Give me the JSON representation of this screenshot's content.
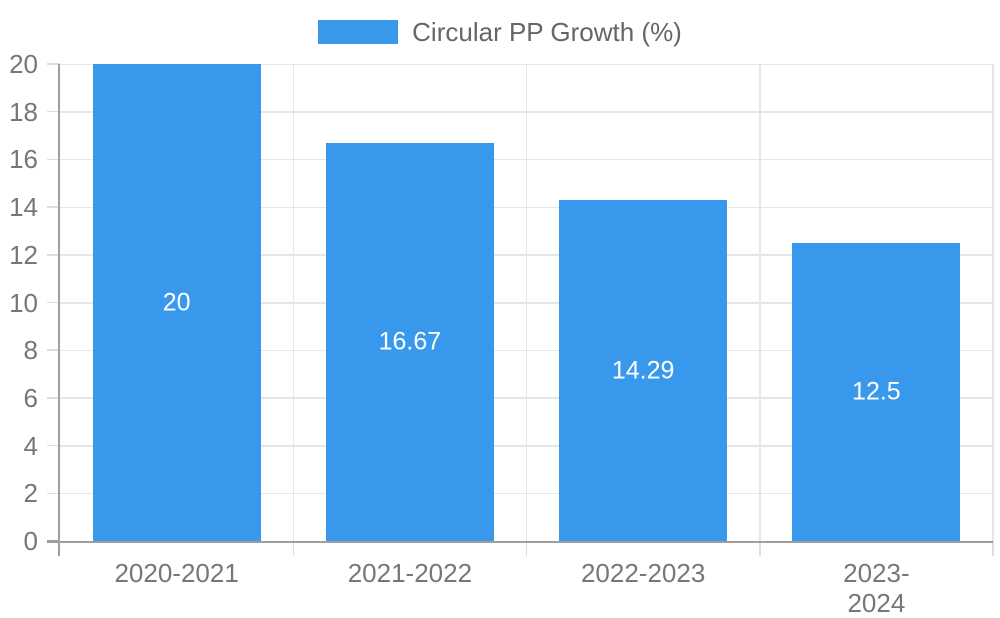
{
  "chart_data": {
    "type": "bar",
    "title": "",
    "legend_label": "Circular PP Growth (%)",
    "legend_position": "top",
    "categories": [
      "2020-2021",
      "2021-2022",
      "2022-2023",
      "2023-2024"
    ],
    "series": [
      {
        "name": "Circular PP Growth (%)",
        "values": [
          20,
          16.67,
          14.29,
          12.5
        ],
        "value_labels": [
          "20",
          "16.67",
          "14.29",
          "12.5"
        ]
      }
    ],
    "xlabel": "",
    "ylabel": "",
    "ylim": [
      0,
      20
    ],
    "ytick_step": 2,
    "ytick_labels": [
      "0",
      "2",
      "4",
      "6",
      "8",
      "10",
      "12",
      "14",
      "16",
      "18",
      "20"
    ],
    "grid": true,
    "colors": {
      "bar": "#3899ec",
      "axis_line": "#9e9e9e",
      "grid_line": "#e6e6e6",
      "tick_mark": "#dedede",
      "tick_label": "#777777",
      "legend_text": "#666666",
      "bar_value_label": "#ffffff",
      "background": "#ffffff"
    }
  }
}
